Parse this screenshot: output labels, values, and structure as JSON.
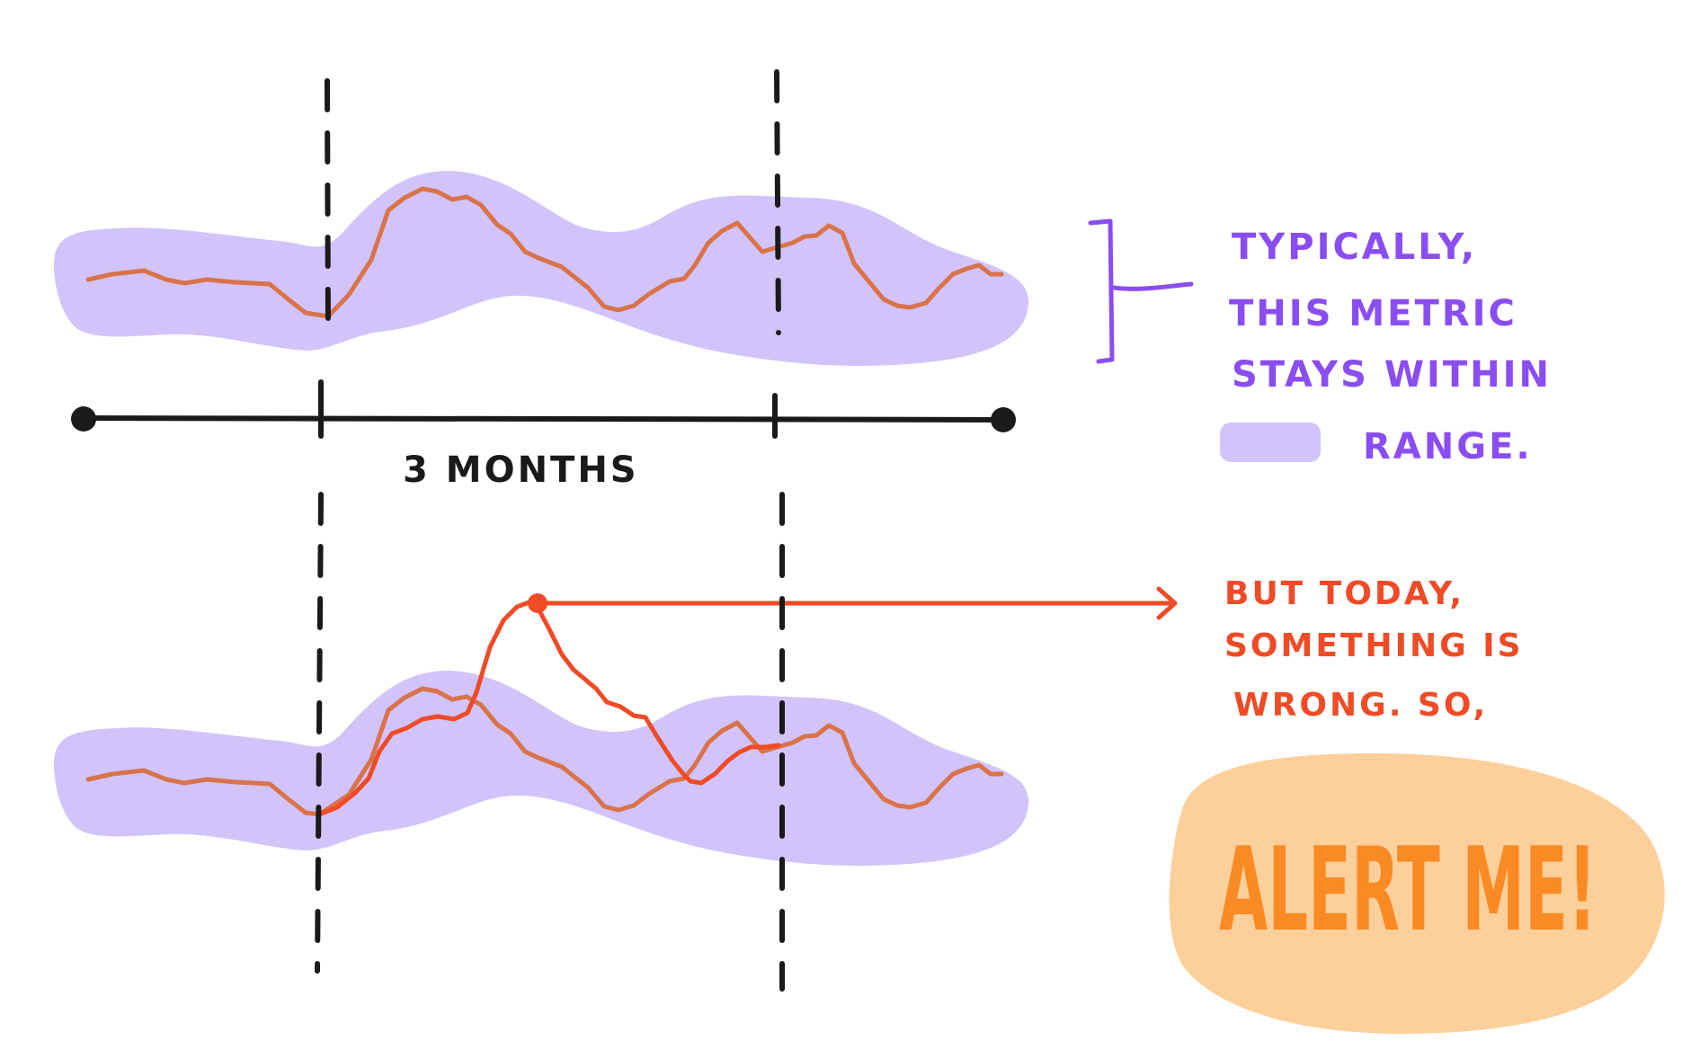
{
  "timeline_label": "3 MONTHS",
  "note_typical": [
    "TYPICALLY,",
    "THIS METRIC",
    "STAYS   WITHIN"
  ],
  "note_range": "RANGE.",
  "note_today": [
    "BUT   TODAY,",
    "SOMETHING IS",
    "WRONG. SO,"
  ],
  "alert_label": "ALERT ME!",
  "colors": {
    "band": "#d2c4fb",
    "metric_line": "#d9734a",
    "anomaly_line": "#ee4b26",
    "purple_text": "#8a4df2",
    "red_text": "#ee4b26",
    "alert_fill": "#fdcf9a",
    "alert_text": "#f98a24",
    "ink": "#1a1a1a"
  }
}
